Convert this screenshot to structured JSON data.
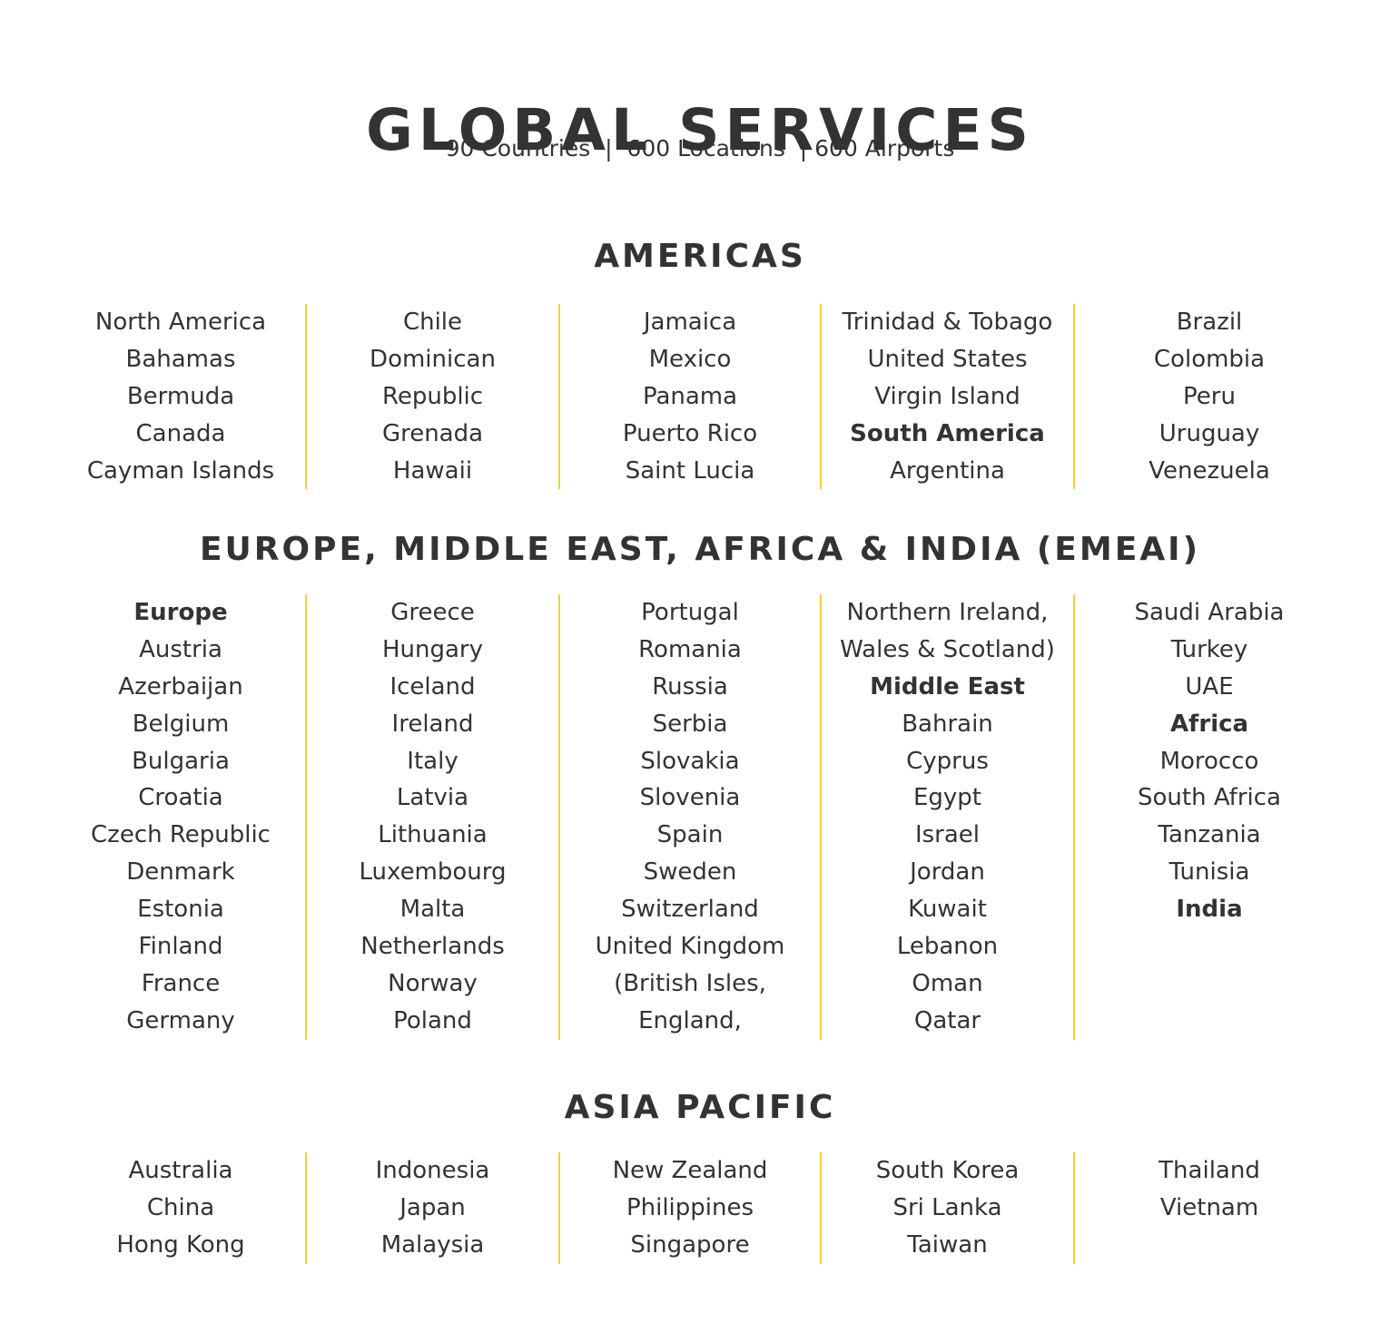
{
  "header": {
    "title": "GLOBAL SERVICES",
    "subtitle": "90 Countries  |  600 Locations  | 600 Airports"
  },
  "colors": {
    "text": "#333333",
    "divider": "#f5d033",
    "background": "#ffffff"
  },
  "sections": [
    {
      "title": "AMERICAS",
      "columns": [
        [
          {
            "text": "North America",
            "heading": true
          },
          {
            "text": "Bahamas"
          },
          {
            "text": "Bermuda"
          },
          {
            "text": "Canada"
          },
          {
            "text": "Cayman Islands"
          }
        ],
        [
          {
            "text": "Chile"
          },
          {
            "text": "Dominican"
          },
          {
            "text": "Republic"
          },
          {
            "text": "Grenada"
          },
          {
            "text": "Hawaii"
          }
        ],
        [
          {
            "text": "Jamaica"
          },
          {
            "text": "Mexico"
          },
          {
            "text": "Panama"
          },
          {
            "text": "Puerto Rico"
          },
          {
            "text": "Saint Lucia"
          }
        ],
        [
          {
            "text": "Trinidad & Tobago"
          },
          {
            "text": "United States"
          },
          {
            "text": "Virgin Island"
          },
          {
            "text": "South America",
            "heading": true
          },
          {
            "text": "Argentina"
          }
        ],
        [
          {
            "text": "Brazil"
          },
          {
            "text": "Colombia"
          },
          {
            "text": "Peru"
          },
          {
            "text": "Uruguay"
          },
          {
            "text": "Venezuela"
          }
        ]
      ]
    },
    {
      "title": "EUROPE, MIDDLE EAST, AFRICA & INDIA (EMEAI)",
      "columns": [
        [
          {
            "text": "Europe",
            "heading": true
          },
          {
            "text": "Austria"
          },
          {
            "text": "Azerbaijan"
          },
          {
            "text": "Belgium"
          },
          {
            "text": "Bulgaria"
          },
          {
            "text": "Croatia"
          },
          {
            "text": "Czech Republic"
          },
          {
            "text": "Denmark"
          },
          {
            "text": "Estonia"
          },
          {
            "text": "Finland"
          },
          {
            "text": "France"
          },
          {
            "text": "Germany"
          }
        ],
        [
          {
            "text": "Greece"
          },
          {
            "text": "Hungary"
          },
          {
            "text": "Iceland"
          },
          {
            "text": "Ireland"
          },
          {
            "text": "Italy"
          },
          {
            "text": "Latvia"
          },
          {
            "text": "Lithuania"
          },
          {
            "text": "Luxembourg"
          },
          {
            "text": "Malta"
          },
          {
            "text": "Netherlands"
          },
          {
            "text": "Norway"
          },
          {
            "text": "Poland"
          }
        ],
        [
          {
            "text": "Portugal"
          },
          {
            "text": "Romania"
          },
          {
            "text": "Russia"
          },
          {
            "text": "Serbia"
          },
          {
            "text": "Slovakia"
          },
          {
            "text": "Slovenia"
          },
          {
            "text": "Spain"
          },
          {
            "text": "Sweden"
          },
          {
            "text": "Switzerland"
          },
          {
            "text": "United Kingdom"
          },
          {
            "text": "(British Isles,"
          },
          {
            "text": "England,"
          }
        ],
        [
          {
            "text": "Northern Ireland,"
          },
          {
            "text": "Wales & Scotland)"
          },
          {
            "text": "Middle East",
            "heading": true
          },
          {
            "text": "Bahrain"
          },
          {
            "text": "Cyprus"
          },
          {
            "text": "Egypt"
          },
          {
            "text": "Israel"
          },
          {
            "text": "Jordan"
          },
          {
            "text": "Kuwait"
          },
          {
            "text": "Lebanon"
          },
          {
            "text": "Oman"
          },
          {
            "text": "Qatar"
          }
        ],
        [
          {
            "text": "Saudi Arabia"
          },
          {
            "text": "Turkey"
          },
          {
            "text": "UAE"
          },
          {
            "text": "Africa",
            "heading": true
          },
          {
            "text": "Morocco"
          },
          {
            "text": "South Africa"
          },
          {
            "text": "Tanzania"
          },
          {
            "text": "Tunisia"
          },
          {
            "text": "India",
            "heading": true
          }
        ]
      ]
    },
    {
      "title": "ASIA PACIFIC",
      "columns": [
        [
          {
            "text": "Australia"
          },
          {
            "text": "China"
          },
          {
            "text": "Hong Kong"
          }
        ],
        [
          {
            "text": "Indonesia"
          },
          {
            "text": "Japan"
          },
          {
            "text": "Malaysia"
          }
        ],
        [
          {
            "text": "New Zealand"
          },
          {
            "text": "Philippines"
          },
          {
            "text": "Singapore"
          }
        ],
        [
          {
            "text": "South Korea"
          },
          {
            "text": "Sri Lanka"
          },
          {
            "text": "Taiwan"
          }
        ],
        [
          {
            "text": "Thailand"
          },
          {
            "text": "Vietnam"
          }
        ]
      ]
    }
  ]
}
